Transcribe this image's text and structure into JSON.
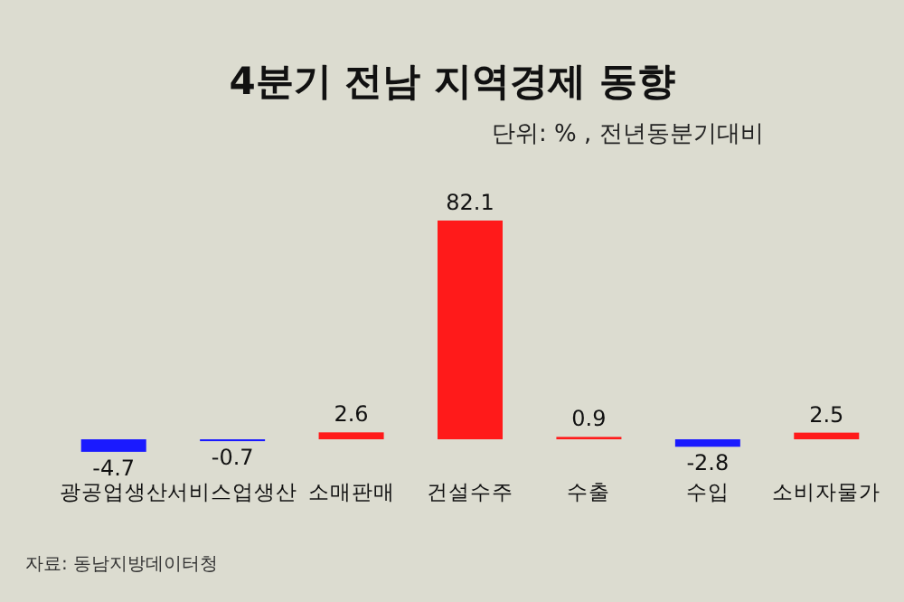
{
  "chart_data": {
    "type": "bar",
    "title": "4분기 전남 지역경제 동향",
    "subtitle": "단위: % , 전년동분기대비",
    "categories": [
      "광공업생산",
      "서비스업생산",
      "소매판매",
      "건설수주",
      "수출",
      "수입",
      "소비자물가"
    ],
    "values": [
      -4.7,
      -0.7,
      2.6,
      82.1,
      0.9,
      -2.8,
      2.5
    ],
    "colors": [
      "#1a1aff",
      "#1a1aff",
      "#ff1a1a",
      "#ff1a1a",
      "#ff1a1a",
      "#1a1aff",
      "#ff1a1a"
    ],
    "data_labels": true,
    "annotations": [
      "자료: 동남지방데이터청"
    ]
  }
}
